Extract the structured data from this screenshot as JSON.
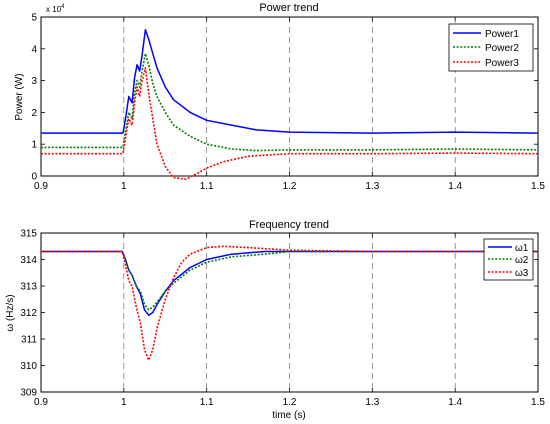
{
  "chart_data": [
    {
      "type": "line",
      "title": "Power trend",
      "xlabel": "",
      "ylabel": "Power (W)",
      "y_exponent_label": "x 10",
      "y_exponent_power": "4",
      "xlim": [
        0.9,
        1.5
      ],
      "ylim": [
        0,
        5
      ],
      "xticks": [
        "0.9",
        "1",
        "1.1",
        "1.2",
        "1.3",
        "1.4",
        "1.5"
      ],
      "yticks": [
        "0",
        "1",
        "2",
        "3",
        "4",
        "5"
      ],
      "grid": "vertical dashed",
      "legend_position": "top-right",
      "series": [
        {
          "name": "Power1",
          "color": "#0000ff",
          "style": "solid",
          "x": [
            0.9,
            0.95,
            0.999,
            1.002,
            1.006,
            1.01,
            1.013,
            1.016,
            1.019,
            1.022,
            1.026,
            1.03,
            1.035,
            1.04,
            1.05,
            1.06,
            1.08,
            1.1,
            1.13,
            1.16,
            1.2,
            1.3,
            1.4,
            1.5
          ],
          "y": [
            1.35,
            1.35,
            1.35,
            1.8,
            2.5,
            2.3,
            3.1,
            3.5,
            3.3,
            3.8,
            4.6,
            4.3,
            3.85,
            3.4,
            2.8,
            2.4,
            2.0,
            1.75,
            1.6,
            1.45,
            1.38,
            1.35,
            1.38,
            1.35
          ]
        },
        {
          "name": "Power2",
          "color": "#008000",
          "style": "dotted",
          "x": [
            0.9,
            0.95,
            0.999,
            1.002,
            1.006,
            1.01,
            1.013,
            1.016,
            1.019,
            1.022,
            1.026,
            1.03,
            1.035,
            1.04,
            1.05,
            1.06,
            1.08,
            1.1,
            1.13,
            1.16,
            1.2,
            1.3,
            1.4,
            1.5
          ],
          "y": [
            0.9,
            0.9,
            0.9,
            1.4,
            2.0,
            1.8,
            2.6,
            3.0,
            2.8,
            3.3,
            3.85,
            3.5,
            2.9,
            2.5,
            2.0,
            1.6,
            1.25,
            1.0,
            0.85,
            0.8,
            0.82,
            0.82,
            0.85,
            0.82
          ]
        },
        {
          "name": "Power3",
          "color": "#ff0000",
          "style": "dotted",
          "x": [
            0.9,
            0.95,
            0.999,
            1.002,
            1.006,
            1.01,
            1.013,
            1.016,
            1.019,
            1.022,
            1.026,
            1.03,
            1.035,
            1.04,
            1.05,
            1.06,
            1.075,
            1.09,
            1.1,
            1.12,
            1.15,
            1.2,
            1.3,
            1.4,
            1.5
          ],
          "y": [
            0.7,
            0.7,
            0.7,
            1.2,
            1.8,
            1.6,
            2.3,
            2.8,
            2.5,
            3.0,
            3.4,
            2.6,
            1.8,
            1.0,
            0.3,
            -0.05,
            -0.1,
            0.1,
            0.25,
            0.45,
            0.62,
            0.7,
            0.7,
            0.72,
            0.7
          ]
        }
      ]
    },
    {
      "type": "line",
      "title": "Frequency trend",
      "xlabel": "time (s)",
      "ylabel": "ω (Hz/s)",
      "xlim": [
        0.9,
        1.5
      ],
      "ylim": [
        309,
        315
      ],
      "xticks": [
        "0.9",
        "1",
        "1.1",
        "1.2",
        "1.3",
        "1.4",
        "1.5"
      ],
      "yticks": [
        "309",
        "310",
        "311",
        "312",
        "313",
        "314",
        "315"
      ],
      "grid": "vertical dashed",
      "legend_position": "top-right",
      "series": [
        {
          "name": "ω1",
          "color": "#0000ff",
          "style": "solid",
          "x": [
            0.9,
            0.95,
            0.998,
            1.002,
            1.006,
            1.01,
            1.015,
            1.02,
            1.025,
            1.03,
            1.035,
            1.04,
            1.05,
            1.06,
            1.08,
            1.1,
            1.13,
            1.17,
            1.2,
            1.3,
            1.4,
            1.5
          ],
          "y": [
            314.3,
            314.3,
            314.3,
            314.0,
            313.6,
            313.4,
            313.0,
            312.7,
            312.1,
            311.9,
            312.0,
            312.3,
            312.8,
            313.2,
            313.7,
            314.0,
            314.2,
            314.3,
            314.3,
            314.3,
            314.3,
            314.3
          ]
        },
        {
          "name": "ω2",
          "color": "#008000",
          "style": "dotted",
          "x": [
            0.9,
            0.95,
            0.998,
            1.002,
            1.006,
            1.01,
            1.015,
            1.02,
            1.025,
            1.03,
            1.035,
            1.04,
            1.05,
            1.06,
            1.08,
            1.1,
            1.13,
            1.17,
            1.2,
            1.3,
            1.4,
            1.5
          ],
          "y": [
            314.3,
            314.3,
            314.3,
            314.0,
            313.6,
            313.4,
            313.0,
            312.8,
            312.3,
            312.1,
            312.2,
            312.4,
            312.8,
            313.1,
            313.6,
            313.9,
            314.1,
            314.2,
            314.3,
            314.3,
            314.3,
            314.3
          ]
        },
        {
          "name": "ω3",
          "color": "#ff0000",
          "style": "dotted",
          "x": [
            0.9,
            0.95,
            0.998,
            1.002,
            1.006,
            1.01,
            1.015,
            1.02,
            1.025,
            1.03,
            1.035,
            1.04,
            1.05,
            1.06,
            1.07,
            1.08,
            1.1,
            1.12,
            1.15,
            1.2,
            1.3,
            1.4,
            1.5
          ],
          "y": [
            314.3,
            314.3,
            314.3,
            313.8,
            313.2,
            313.0,
            312.2,
            311.6,
            310.6,
            310.2,
            310.6,
            311.4,
            312.5,
            313.3,
            313.9,
            314.2,
            314.45,
            314.5,
            314.45,
            314.35,
            314.3,
            314.3,
            314.3
          ]
        }
      ]
    }
  ]
}
